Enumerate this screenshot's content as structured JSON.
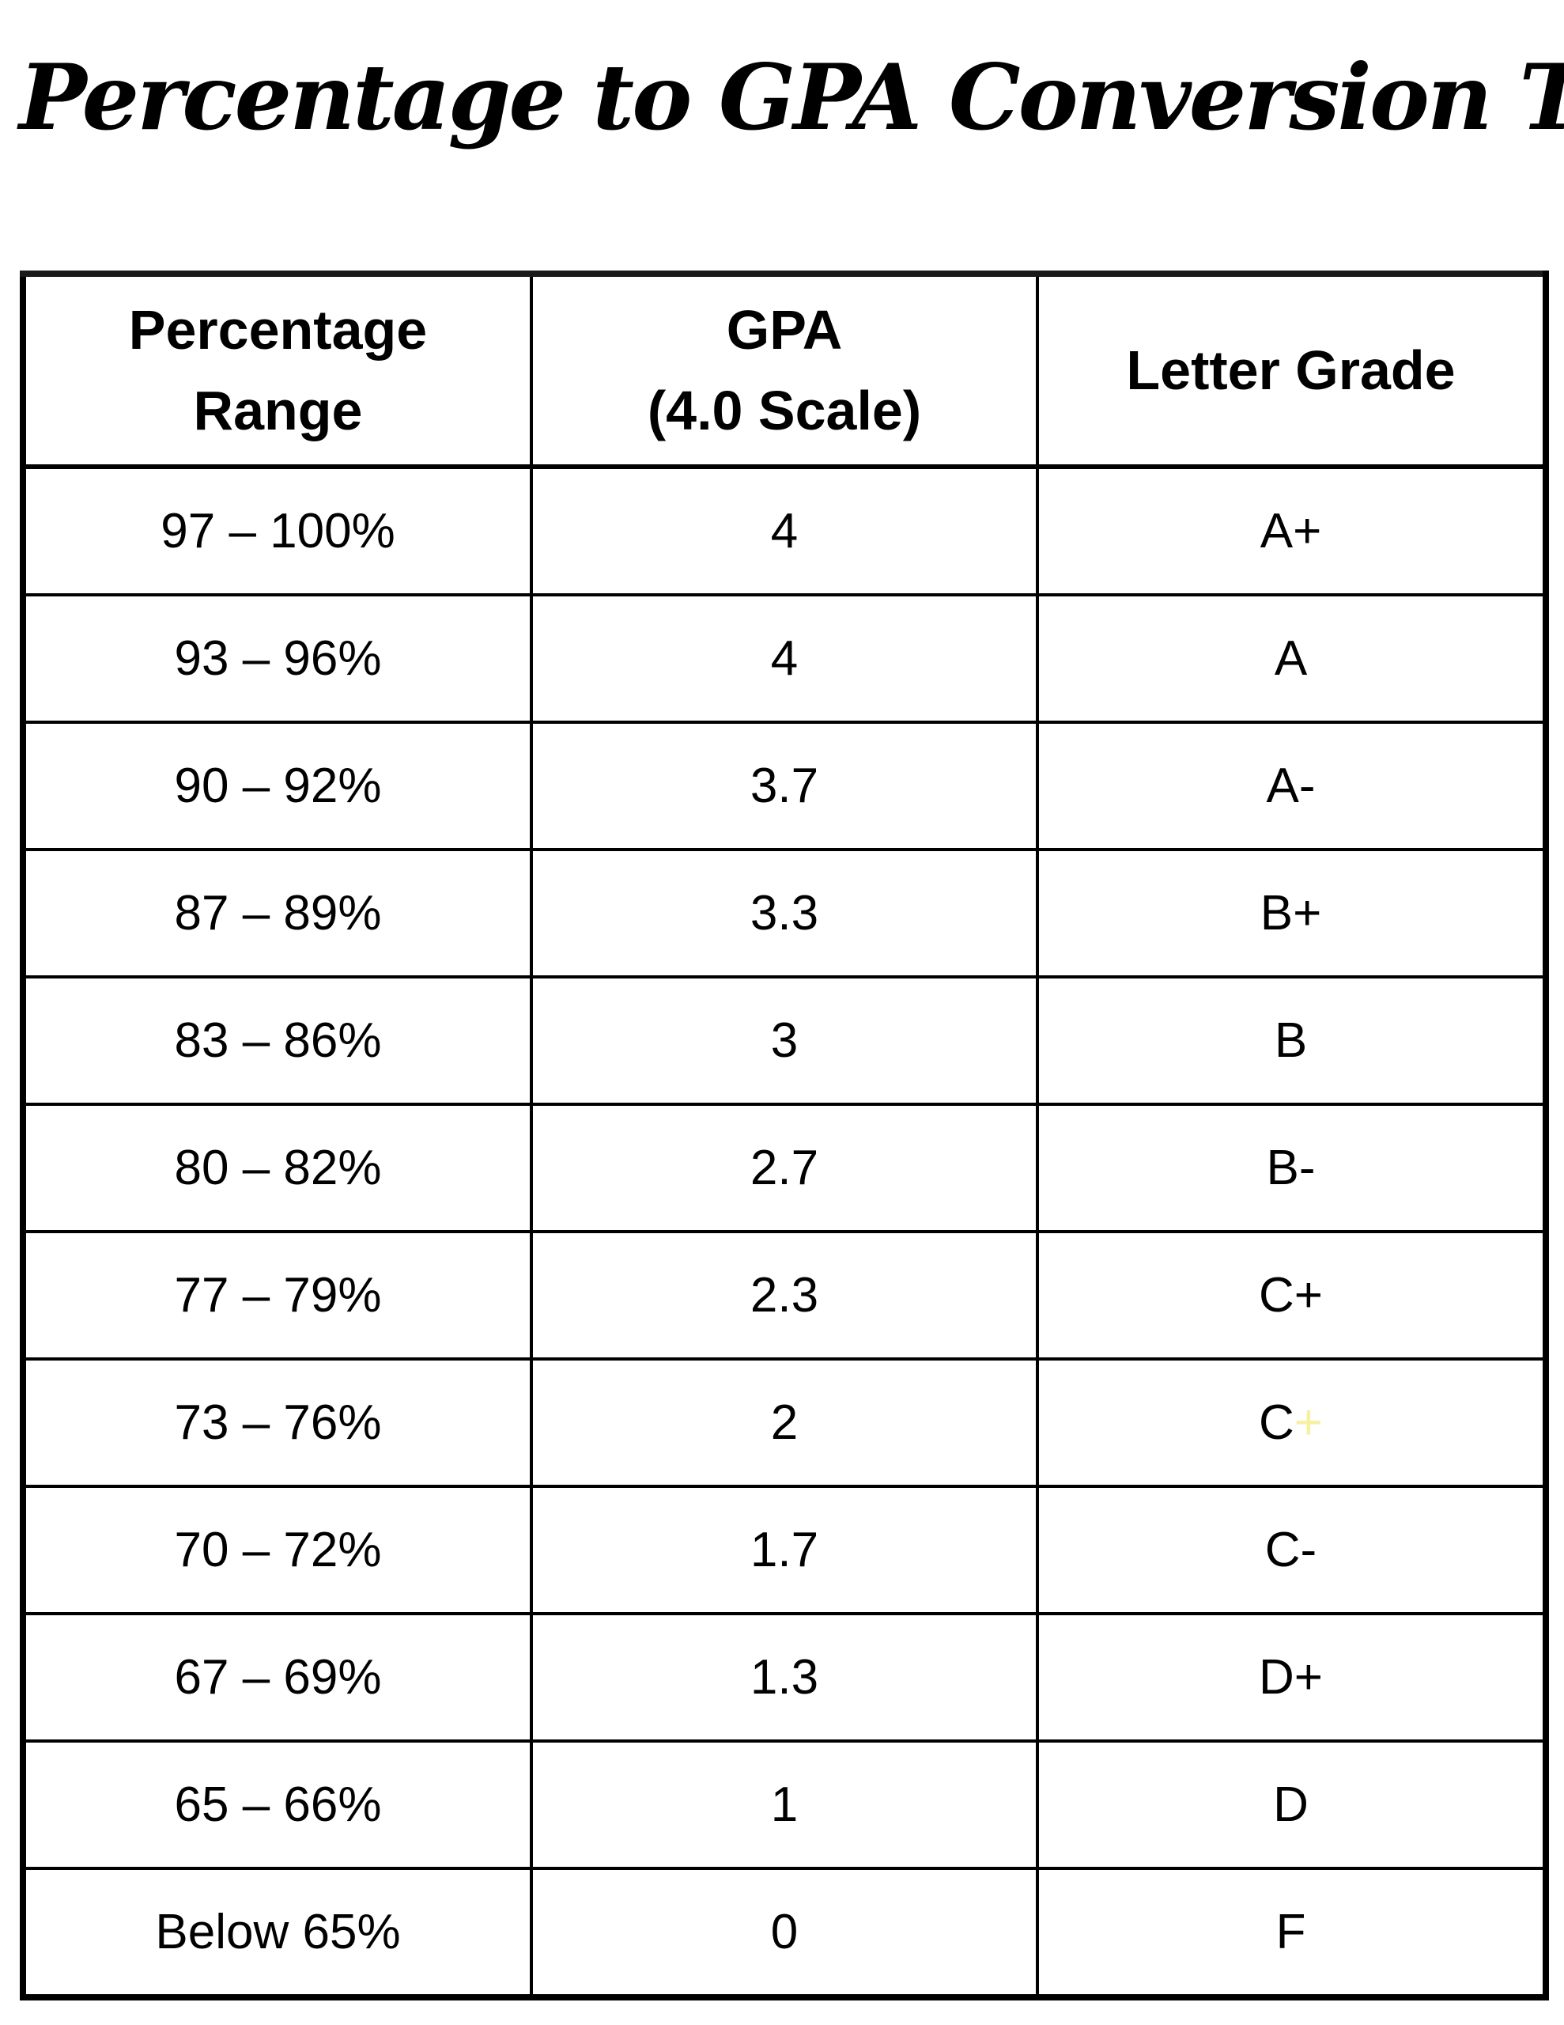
{
  "title": "Percentage to GPA Conversion Table",
  "colors": {
    "border": "#000000",
    "text": "#000000",
    "highlight_plus": "#f6f0a0"
  },
  "table": {
    "headers": [
      {
        "lines": [
          "Percentage",
          "Range"
        ]
      },
      {
        "lines": [
          "GPA",
          "(4.0 Scale)"
        ]
      },
      {
        "lines": [
          "Letter Grade"
        ]
      }
    ],
    "rows": [
      {
        "range": "97 – 100%",
        "gpa": "4",
        "grade": "A+"
      },
      {
        "range": "93 – 96%",
        "gpa": "4",
        "grade": "A"
      },
      {
        "range": "90 – 92%",
        "gpa": "3.7",
        "grade": "A-"
      },
      {
        "range": "87 – 89%",
        "gpa": "3.3",
        "grade": "B+"
      },
      {
        "range": "83 – 86%",
        "gpa": "3",
        "grade": "B"
      },
      {
        "range": "80 – 82%",
        "gpa": "2.7",
        "grade": "B-"
      },
      {
        "range": "77 – 79%",
        "gpa": "2.3",
        "grade": "C+"
      },
      {
        "range": "73 – 76%",
        "gpa": "2",
        "grade": "C",
        "grade_suffix": "+",
        "grade_suffix_color": "#f6f0a0"
      },
      {
        "range": "70 – 72%",
        "gpa": "1.7",
        "grade": "C-"
      },
      {
        "range": "67 – 69%",
        "gpa": "1.3",
        "grade": "D+"
      },
      {
        "range": "65 – 66%",
        "gpa": "1",
        "grade": "D"
      },
      {
        "range": "Below 65%",
        "gpa": "0",
        "grade": "F"
      }
    ]
  }
}
